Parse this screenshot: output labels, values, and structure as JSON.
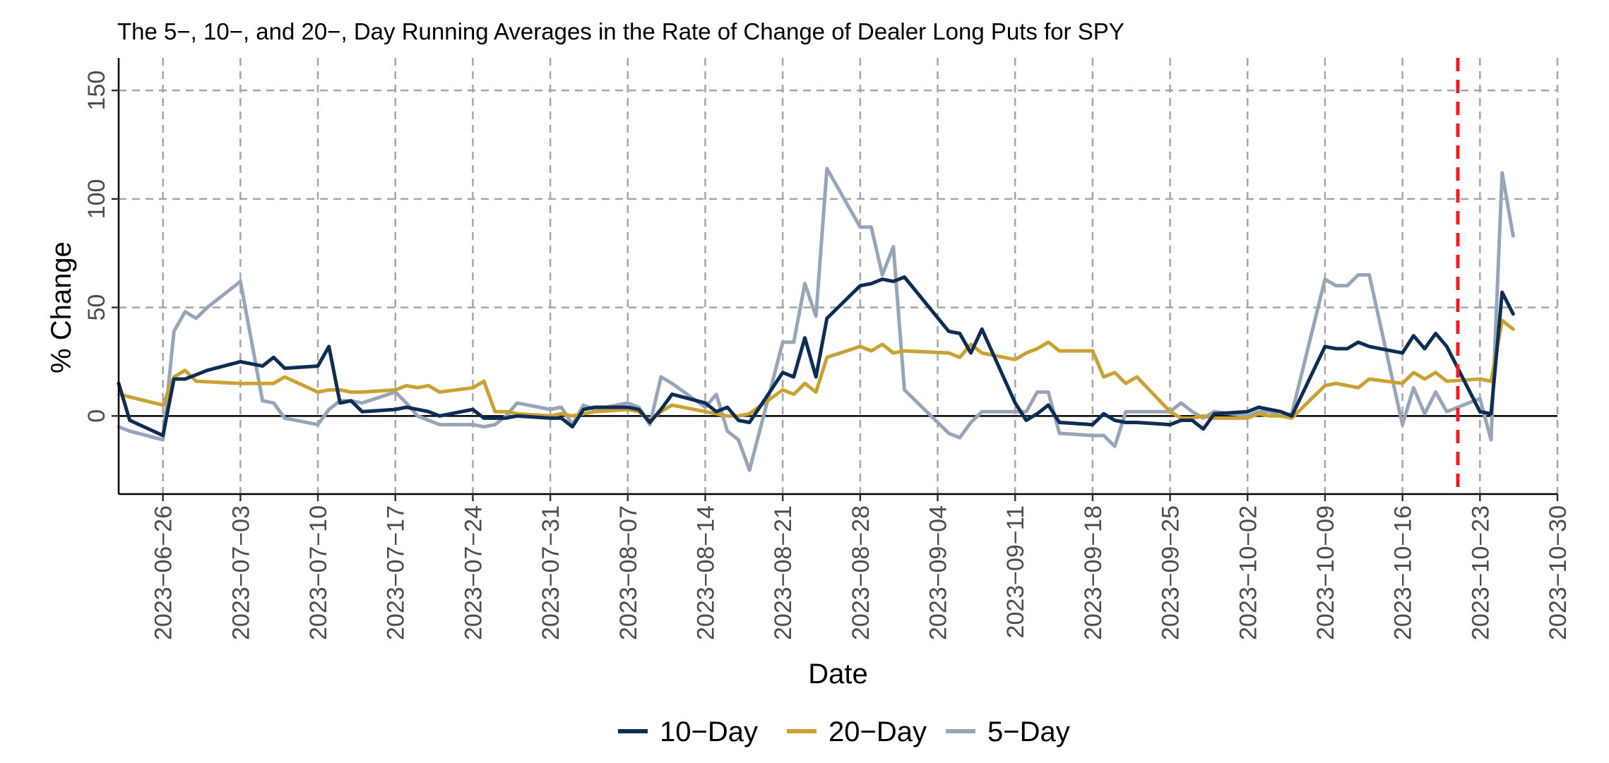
{
  "chart_data": {
    "type": "line",
    "title": "The 5−, 10−, and 20−, Day Running Averages in the Rate of Change of Dealer Long Puts for SPY",
    "xlabel": "Date",
    "ylabel": "% Change",
    "x_ticks": [
      "2023−06−26",
      "2023−07−03",
      "2023−07−10",
      "2023−07−17",
      "2023−07−24",
      "2023−07−31",
      "2023−08−07",
      "2023−08−14",
      "2023−08−21",
      "2023−08−28",
      "2023−09−04",
      "2023−09−11",
      "2023−09−18",
      "2023−09−25",
      "2023−10−02",
      "2023−10−09",
      "2023−10−16",
      "2023−10−23",
      "2023−10−30"
    ],
    "x_tick_dates": [
      "2023-06-26",
      "2023-07-03",
      "2023-07-10",
      "2023-07-17",
      "2023-07-24",
      "2023-07-31",
      "2023-08-07",
      "2023-08-14",
      "2023-08-21",
      "2023-08-28",
      "2023-09-04",
      "2023-09-11",
      "2023-09-18",
      "2023-09-25",
      "2023-10-02",
      "2023-10-09",
      "2023-10-16",
      "2023-10-23",
      "2023-10-30"
    ],
    "y_ticks": [
      0,
      50,
      100,
      150
    ],
    "xlim": [
      "2023-06-22",
      "2023-10-30"
    ],
    "ylim": [
      -36,
      165
    ],
    "grid": true,
    "zero_line": 0,
    "vline": {
      "x": "2023-10-21",
      "color": "#ee1c25",
      "style": "dashed"
    },
    "legend_position": "bottom",
    "series": [
      {
        "name": "10−Day",
        "color": "#0e2d55",
        "points": [
          [
            "2023-06-22",
            15
          ],
          [
            "2023-06-23",
            -2
          ],
          [
            "2023-06-26",
            -9
          ],
          [
            "2023-06-27",
            17
          ],
          [
            "2023-06-28",
            17
          ],
          [
            "2023-06-29",
            19
          ],
          [
            "2023-06-30",
            21
          ],
          [
            "2023-07-03",
            25
          ],
          [
            "2023-07-05",
            23
          ],
          [
            "2023-07-06",
            27
          ],
          [
            "2023-07-07",
            22
          ],
          [
            "2023-07-10",
            23
          ],
          [
            "2023-07-11",
            32
          ],
          [
            "2023-07-12",
            6
          ],
          [
            "2023-07-13",
            7
          ],
          [
            "2023-07-14",
            2
          ],
          [
            "2023-07-17",
            3
          ],
          [
            "2023-07-18",
            4
          ],
          [
            "2023-07-19",
            3
          ],
          [
            "2023-07-20",
            2
          ],
          [
            "2023-07-21",
            0
          ],
          [
            "2023-07-24",
            3
          ],
          [
            "2023-07-25",
            -1
          ],
          [
            "2023-07-26",
            -1
          ],
          [
            "2023-07-27",
            -1
          ],
          [
            "2023-07-28",
            0
          ],
          [
            "2023-07-31",
            -1
          ],
          [
            "2023-08-01",
            -1
          ],
          [
            "2023-08-02",
            -5
          ],
          [
            "2023-08-03",
            3
          ],
          [
            "2023-08-04",
            4
          ],
          [
            "2023-08-07",
            4
          ],
          [
            "2023-08-08",
            3
          ],
          [
            "2023-08-09",
            -3
          ],
          [
            "2023-08-10",
            3
          ],
          [
            "2023-08-11",
            10
          ],
          [
            "2023-08-14",
            6
          ],
          [
            "2023-08-15",
            2
          ],
          [
            "2023-08-16",
            4
          ],
          [
            "2023-08-17",
            -2
          ],
          [
            "2023-08-18",
            -3
          ],
          [
            "2023-08-21",
            20
          ],
          [
            "2023-08-22",
            18
          ],
          [
            "2023-08-23",
            36
          ],
          [
            "2023-08-24",
            18
          ],
          [
            "2023-08-25",
            45
          ],
          [
            "2023-08-28",
            60
          ],
          [
            "2023-08-29",
            61
          ],
          [
            "2023-08-30",
            63
          ],
          [
            "2023-08-31",
            62
          ],
          [
            "2023-09-01",
            64
          ],
          [
            "2023-09-05",
            39
          ],
          [
            "2023-09-06",
            38
          ],
          [
            "2023-09-07",
            29
          ],
          [
            "2023-09-08",
            40
          ],
          [
            "2023-09-11",
            6
          ],
          [
            "2023-09-12",
            -2
          ],
          [
            "2023-09-13",
            1
          ],
          [
            "2023-09-14",
            5
          ],
          [
            "2023-09-15",
            -3
          ],
          [
            "2023-09-18",
            -4
          ],
          [
            "2023-09-19",
            1
          ],
          [
            "2023-09-20",
            -2
          ],
          [
            "2023-09-21",
            -3
          ],
          [
            "2023-09-22",
            -3
          ],
          [
            "2023-09-25",
            -4
          ],
          [
            "2023-09-26",
            -2
          ],
          [
            "2023-09-27",
            -2
          ],
          [
            "2023-09-28",
            -6
          ],
          [
            "2023-09-29",
            1
          ],
          [
            "2023-10-02",
            2
          ],
          [
            "2023-10-03",
            4
          ],
          [
            "2023-10-04",
            3
          ],
          [
            "2023-10-05",
            2
          ],
          [
            "2023-10-06",
            0
          ],
          [
            "2023-10-09",
            32
          ],
          [
            "2023-10-10",
            31
          ],
          [
            "2023-10-11",
            31
          ],
          [
            "2023-10-12",
            34
          ],
          [
            "2023-10-13",
            32
          ],
          [
            "2023-10-16",
            29
          ],
          [
            "2023-10-17",
            37
          ],
          [
            "2023-10-18",
            31
          ],
          [
            "2023-10-19",
            38
          ],
          [
            "2023-10-20",
            32
          ],
          [
            "2023-10-23",
            2
          ],
          [
            "2023-10-24",
            1
          ],
          [
            "2023-10-25",
            57
          ],
          [
            "2023-10-26",
            47
          ]
        ]
      },
      {
        "name": "20−Day",
        "color": "#c9a233",
        "points": [
          [
            "2023-06-22",
            10
          ],
          [
            "2023-06-26",
            5
          ],
          [
            "2023-06-27",
            18
          ],
          [
            "2023-06-28",
            21
          ],
          [
            "2023-06-29",
            16
          ],
          [
            "2023-07-03",
            15
          ],
          [
            "2023-07-06",
            15
          ],
          [
            "2023-07-07",
            18
          ],
          [
            "2023-07-10",
            11
          ],
          [
            "2023-07-11",
            12
          ],
          [
            "2023-07-12",
            12
          ],
          [
            "2023-07-13",
            11
          ],
          [
            "2023-07-14",
            11
          ],
          [
            "2023-07-17",
            12
          ],
          [
            "2023-07-18",
            14
          ],
          [
            "2023-07-19",
            13
          ],
          [
            "2023-07-20",
            14
          ],
          [
            "2023-07-21",
            11
          ],
          [
            "2023-07-24",
            13
          ],
          [
            "2023-07-25",
            16
          ],
          [
            "2023-07-26",
            2
          ],
          [
            "2023-07-27",
            2
          ],
          [
            "2023-07-28",
            1
          ],
          [
            "2023-07-31",
            0
          ],
          [
            "2023-08-01",
            1
          ],
          [
            "2023-08-02",
            0
          ],
          [
            "2023-08-03",
            1
          ],
          [
            "2023-08-04",
            2
          ],
          [
            "2023-08-07",
            3
          ],
          [
            "2023-08-08",
            2
          ],
          [
            "2023-08-09",
            -2
          ],
          [
            "2023-08-10",
            2
          ],
          [
            "2023-08-11",
            5
          ],
          [
            "2023-08-14",
            2
          ],
          [
            "2023-08-15",
            1
          ],
          [
            "2023-08-16",
            0
          ],
          [
            "2023-08-17",
            0
          ],
          [
            "2023-08-18",
            1
          ],
          [
            "2023-08-21",
            12
          ],
          [
            "2023-08-22",
            10
          ],
          [
            "2023-08-23",
            15
          ],
          [
            "2023-08-24",
            11
          ],
          [
            "2023-08-25",
            27
          ],
          [
            "2023-08-28",
            32
          ],
          [
            "2023-08-29",
            30
          ],
          [
            "2023-08-30",
            33
          ],
          [
            "2023-08-31",
            29
          ],
          [
            "2023-09-01",
            30
          ],
          [
            "2023-09-05",
            29
          ],
          [
            "2023-09-06",
            27
          ],
          [
            "2023-09-07",
            33
          ],
          [
            "2023-09-08",
            29
          ],
          [
            "2023-09-11",
            26
          ],
          [
            "2023-09-12",
            29
          ],
          [
            "2023-09-13",
            31
          ],
          [
            "2023-09-14",
            34
          ],
          [
            "2023-09-15",
            30
          ],
          [
            "2023-09-18",
            30
          ],
          [
            "2023-09-19",
            18
          ],
          [
            "2023-09-20",
            20
          ],
          [
            "2023-09-21",
            15
          ],
          [
            "2023-09-22",
            18
          ],
          [
            "2023-09-25",
            2
          ],
          [
            "2023-09-26",
            -1
          ],
          [
            "2023-09-27",
            -1
          ],
          [
            "2023-09-28",
            0
          ],
          [
            "2023-09-29",
            -1
          ],
          [
            "2023-10-02",
            -1
          ],
          [
            "2023-10-03",
            1
          ],
          [
            "2023-10-04",
            0
          ],
          [
            "2023-10-05",
            0
          ],
          [
            "2023-10-06",
            -1
          ],
          [
            "2023-10-09",
            14
          ],
          [
            "2023-10-10",
            15
          ],
          [
            "2023-10-11",
            14
          ],
          [
            "2023-10-12",
            13
          ],
          [
            "2023-10-13",
            17
          ],
          [
            "2023-10-16",
            15
          ],
          [
            "2023-10-17",
            20
          ],
          [
            "2023-10-18",
            17
          ],
          [
            "2023-10-19",
            20
          ],
          [
            "2023-10-20",
            16
          ],
          [
            "2023-10-23",
            17
          ],
          [
            "2023-10-24",
            16
          ],
          [
            "2023-10-25",
            44
          ],
          [
            "2023-10-26",
            40
          ]
        ]
      },
      {
        "name": "5−Day",
        "color": "#97a5b8",
        "points": [
          [
            "2023-06-22",
            -5
          ],
          [
            "2023-06-23",
            -7
          ],
          [
            "2023-06-26",
            -11
          ],
          [
            "2023-06-27",
            39
          ],
          [
            "2023-06-28",
            48
          ],
          [
            "2023-06-29",
            45
          ],
          [
            "2023-06-30",
            50
          ],
          [
            "2023-07-03",
            62
          ],
          [
            "2023-07-05",
            7
          ],
          [
            "2023-07-06",
            6
          ],
          [
            "2023-07-07",
            -1
          ],
          [
            "2023-07-10",
            -4
          ],
          [
            "2023-07-11",
            3
          ],
          [
            "2023-07-12",
            7
          ],
          [
            "2023-07-13",
            7
          ],
          [
            "2023-07-14",
            6
          ],
          [
            "2023-07-17",
            11
          ],
          [
            "2023-07-18",
            6
          ],
          [
            "2023-07-19",
            0
          ],
          [
            "2023-07-20",
            -2
          ],
          [
            "2023-07-21",
            -4
          ],
          [
            "2023-07-24",
            -4
          ],
          [
            "2023-07-25",
            -5
          ],
          [
            "2023-07-26",
            -4
          ],
          [
            "2023-07-27",
            0
          ],
          [
            "2023-07-28",
            6
          ],
          [
            "2023-07-31",
            3
          ],
          [
            "2023-08-01",
            4
          ],
          [
            "2023-08-02",
            -4
          ],
          [
            "2023-08-03",
            5
          ],
          [
            "2023-08-04",
            3
          ],
          [
            "2023-08-07",
            6
          ],
          [
            "2023-08-08",
            4
          ],
          [
            "2023-08-09",
            -4
          ],
          [
            "2023-08-10",
            18
          ],
          [
            "2023-08-11",
            15
          ],
          [
            "2023-08-14",
            4
          ],
          [
            "2023-08-15",
            10
          ],
          [
            "2023-08-16",
            -7
          ],
          [
            "2023-08-17",
            -11
          ],
          [
            "2023-08-18",
            -25
          ],
          [
            "2023-08-21",
            34
          ],
          [
            "2023-08-22",
            34
          ],
          [
            "2023-08-23",
            61
          ],
          [
            "2023-08-24",
            46
          ],
          [
            "2023-08-25",
            114
          ],
          [
            "2023-08-28",
            87
          ],
          [
            "2023-08-29",
            87
          ],
          [
            "2023-08-30",
            65
          ],
          [
            "2023-08-31",
            78
          ],
          [
            "2023-09-01",
            12
          ],
          [
            "2023-09-05",
            -8
          ],
          [
            "2023-09-06",
            -10
          ],
          [
            "2023-09-07",
            -3
          ],
          [
            "2023-09-08",
            2
          ],
          [
            "2023-09-11",
            2
          ],
          [
            "2023-09-12",
            2
          ],
          [
            "2023-09-13",
            11
          ],
          [
            "2023-09-14",
            11
          ],
          [
            "2023-09-15",
            -8
          ],
          [
            "2023-09-18",
            -9
          ],
          [
            "2023-09-19",
            -9
          ],
          [
            "2023-09-20",
            -14
          ],
          [
            "2023-09-21",
            2
          ],
          [
            "2023-09-22",
            2
          ],
          [
            "2023-09-25",
            2
          ],
          [
            "2023-09-26",
            6
          ],
          [
            "2023-09-27",
            2
          ],
          [
            "2023-09-28",
            -1
          ],
          [
            "2023-09-29",
            2
          ],
          [
            "2023-10-02",
            0
          ],
          [
            "2023-10-03",
            2
          ],
          [
            "2023-10-04",
            2
          ],
          [
            "2023-10-05",
            0
          ],
          [
            "2023-10-06",
            1
          ],
          [
            "2023-10-09",
            63
          ],
          [
            "2023-10-10",
            60
          ],
          [
            "2023-10-11",
            60
          ],
          [
            "2023-10-12",
            65
          ],
          [
            "2023-10-13",
            65
          ],
          [
            "2023-10-16",
            -4
          ],
          [
            "2023-10-17",
            13
          ],
          [
            "2023-10-18",
            1
          ],
          [
            "2023-10-19",
            11
          ],
          [
            "2023-10-20",
            2
          ],
          [
            "2023-10-23",
            8
          ],
          [
            "2023-10-24",
            -11
          ],
          [
            "2023-10-25",
            112
          ],
          [
            "2023-10-26",
            83
          ]
        ]
      }
    ]
  }
}
